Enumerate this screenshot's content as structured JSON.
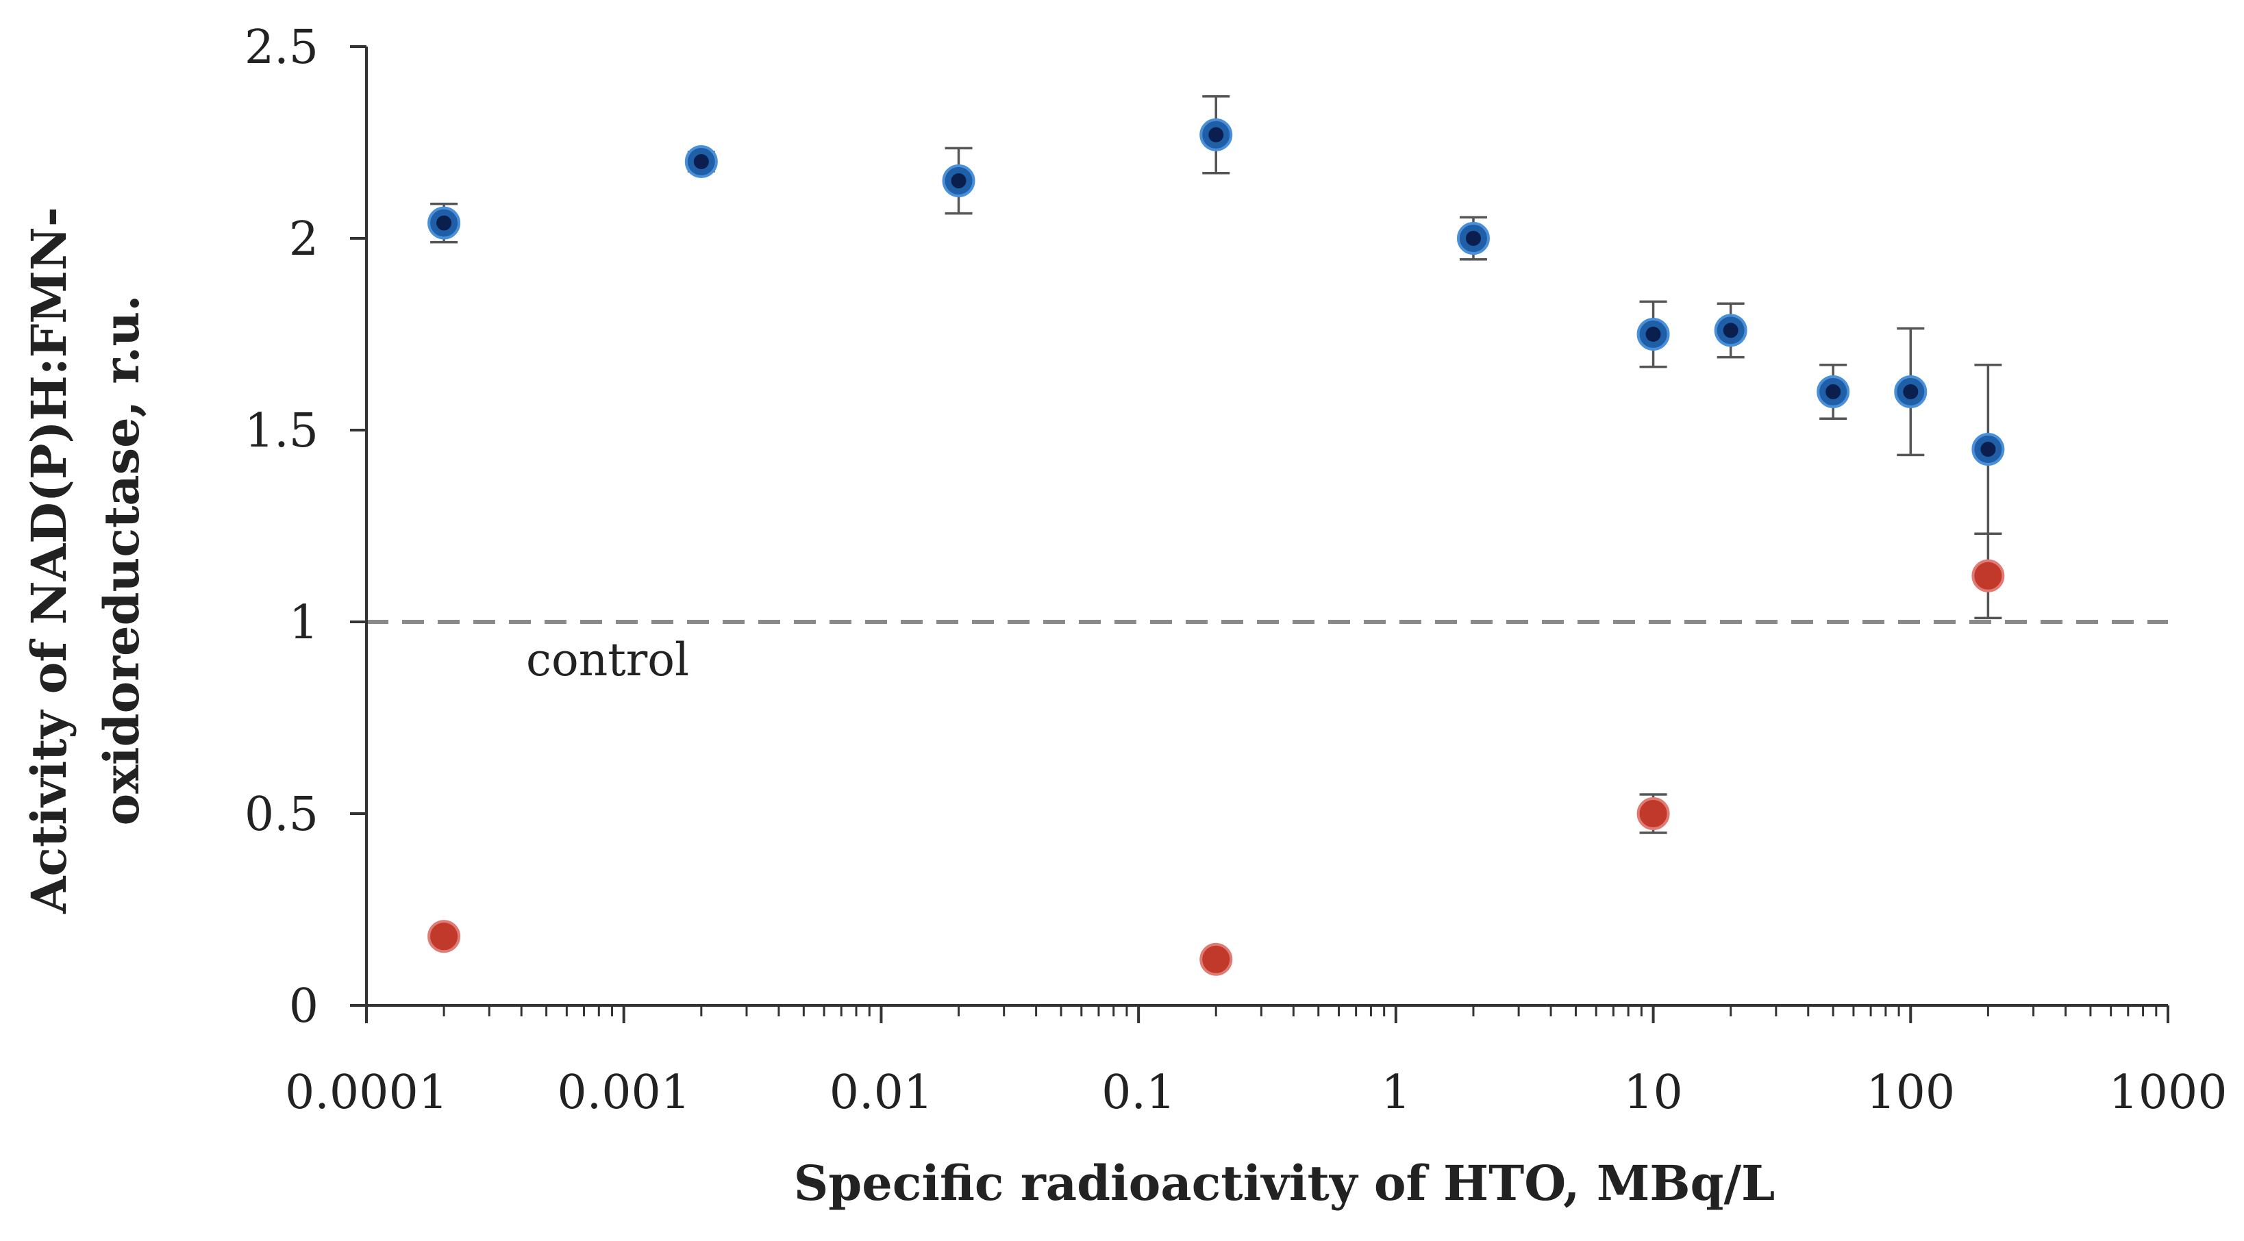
{
  "chart_data": {
    "type": "scatter",
    "title": "",
    "xlabel": "Specific radioactivity of HTO, MBq/L",
    "ylabel_lines": [
      "Activity of NAD(P)H:FMN-",
      "oxidoreductase, r.u."
    ],
    "xscale": "log",
    "xlim": [
      0.0001,
      1000
    ],
    "ylim": [
      0,
      2.5
    ],
    "x_ticks": [
      {
        "value": 0.0001,
        "label": "0.0001"
      },
      {
        "value": 0.001,
        "label": "0.001"
      },
      {
        "value": 0.01,
        "label": "0.01"
      },
      {
        "value": 0.1,
        "label": "0.1"
      },
      {
        "value": 1,
        "label": "1"
      },
      {
        "value": 10,
        "label": "10"
      },
      {
        "value": 100,
        "label": "100"
      },
      {
        "value": 1000,
        "label": "1000"
      }
    ],
    "y_ticks": [
      {
        "value": 0,
        "label": "0"
      },
      {
        "value": 0.5,
        "label": "0.5"
      },
      {
        "value": 1,
        "label": "1"
      },
      {
        "value": 1.5,
        "label": "1.5"
      },
      {
        "value": 2,
        "label": "2"
      },
      {
        "value": 2.5,
        "label": "2.5"
      }
    ],
    "grid": false,
    "series": [
      {
        "name": "blue",
        "color": "#1f5fa8",
        "inner_color": "#0a1f4d",
        "points": [
          {
            "x": 0.0002,
            "y": 2.04,
            "err": 0.05
          },
          {
            "x": 0.002,
            "y": 2.2,
            "err": 0.025
          },
          {
            "x": 0.02,
            "y": 2.15,
            "err": 0.085
          },
          {
            "x": 0.2,
            "y": 2.27,
            "err": 0.1
          },
          {
            "x": 2,
            "y": 2.0,
            "err": 0.055
          },
          {
            "x": 10,
            "y": 1.75,
            "err": 0.085
          },
          {
            "x": 20,
            "y": 1.76,
            "err": 0.07
          },
          {
            "x": 50,
            "y": 1.6,
            "err": 0.07
          },
          {
            "x": 100,
            "y": 1.6,
            "err": 0.165
          },
          {
            "x": 200,
            "y": 1.45,
            "err": 0.22
          }
        ]
      },
      {
        "name": "red",
        "color": "#c0392b",
        "points": [
          {
            "x": 0.0002,
            "y": 0.18,
            "err": 0
          },
          {
            "x": 0.2,
            "y": 0.12,
            "err": 0
          },
          {
            "x": 10,
            "y": 0.5,
            "err": 0.05
          },
          {
            "x": 200,
            "y": 1.12,
            "err": 0.11
          }
        ]
      }
    ],
    "reference_line": {
      "y": 1,
      "label": "control",
      "style": "dashed",
      "color": "#8a8a8a"
    }
  }
}
